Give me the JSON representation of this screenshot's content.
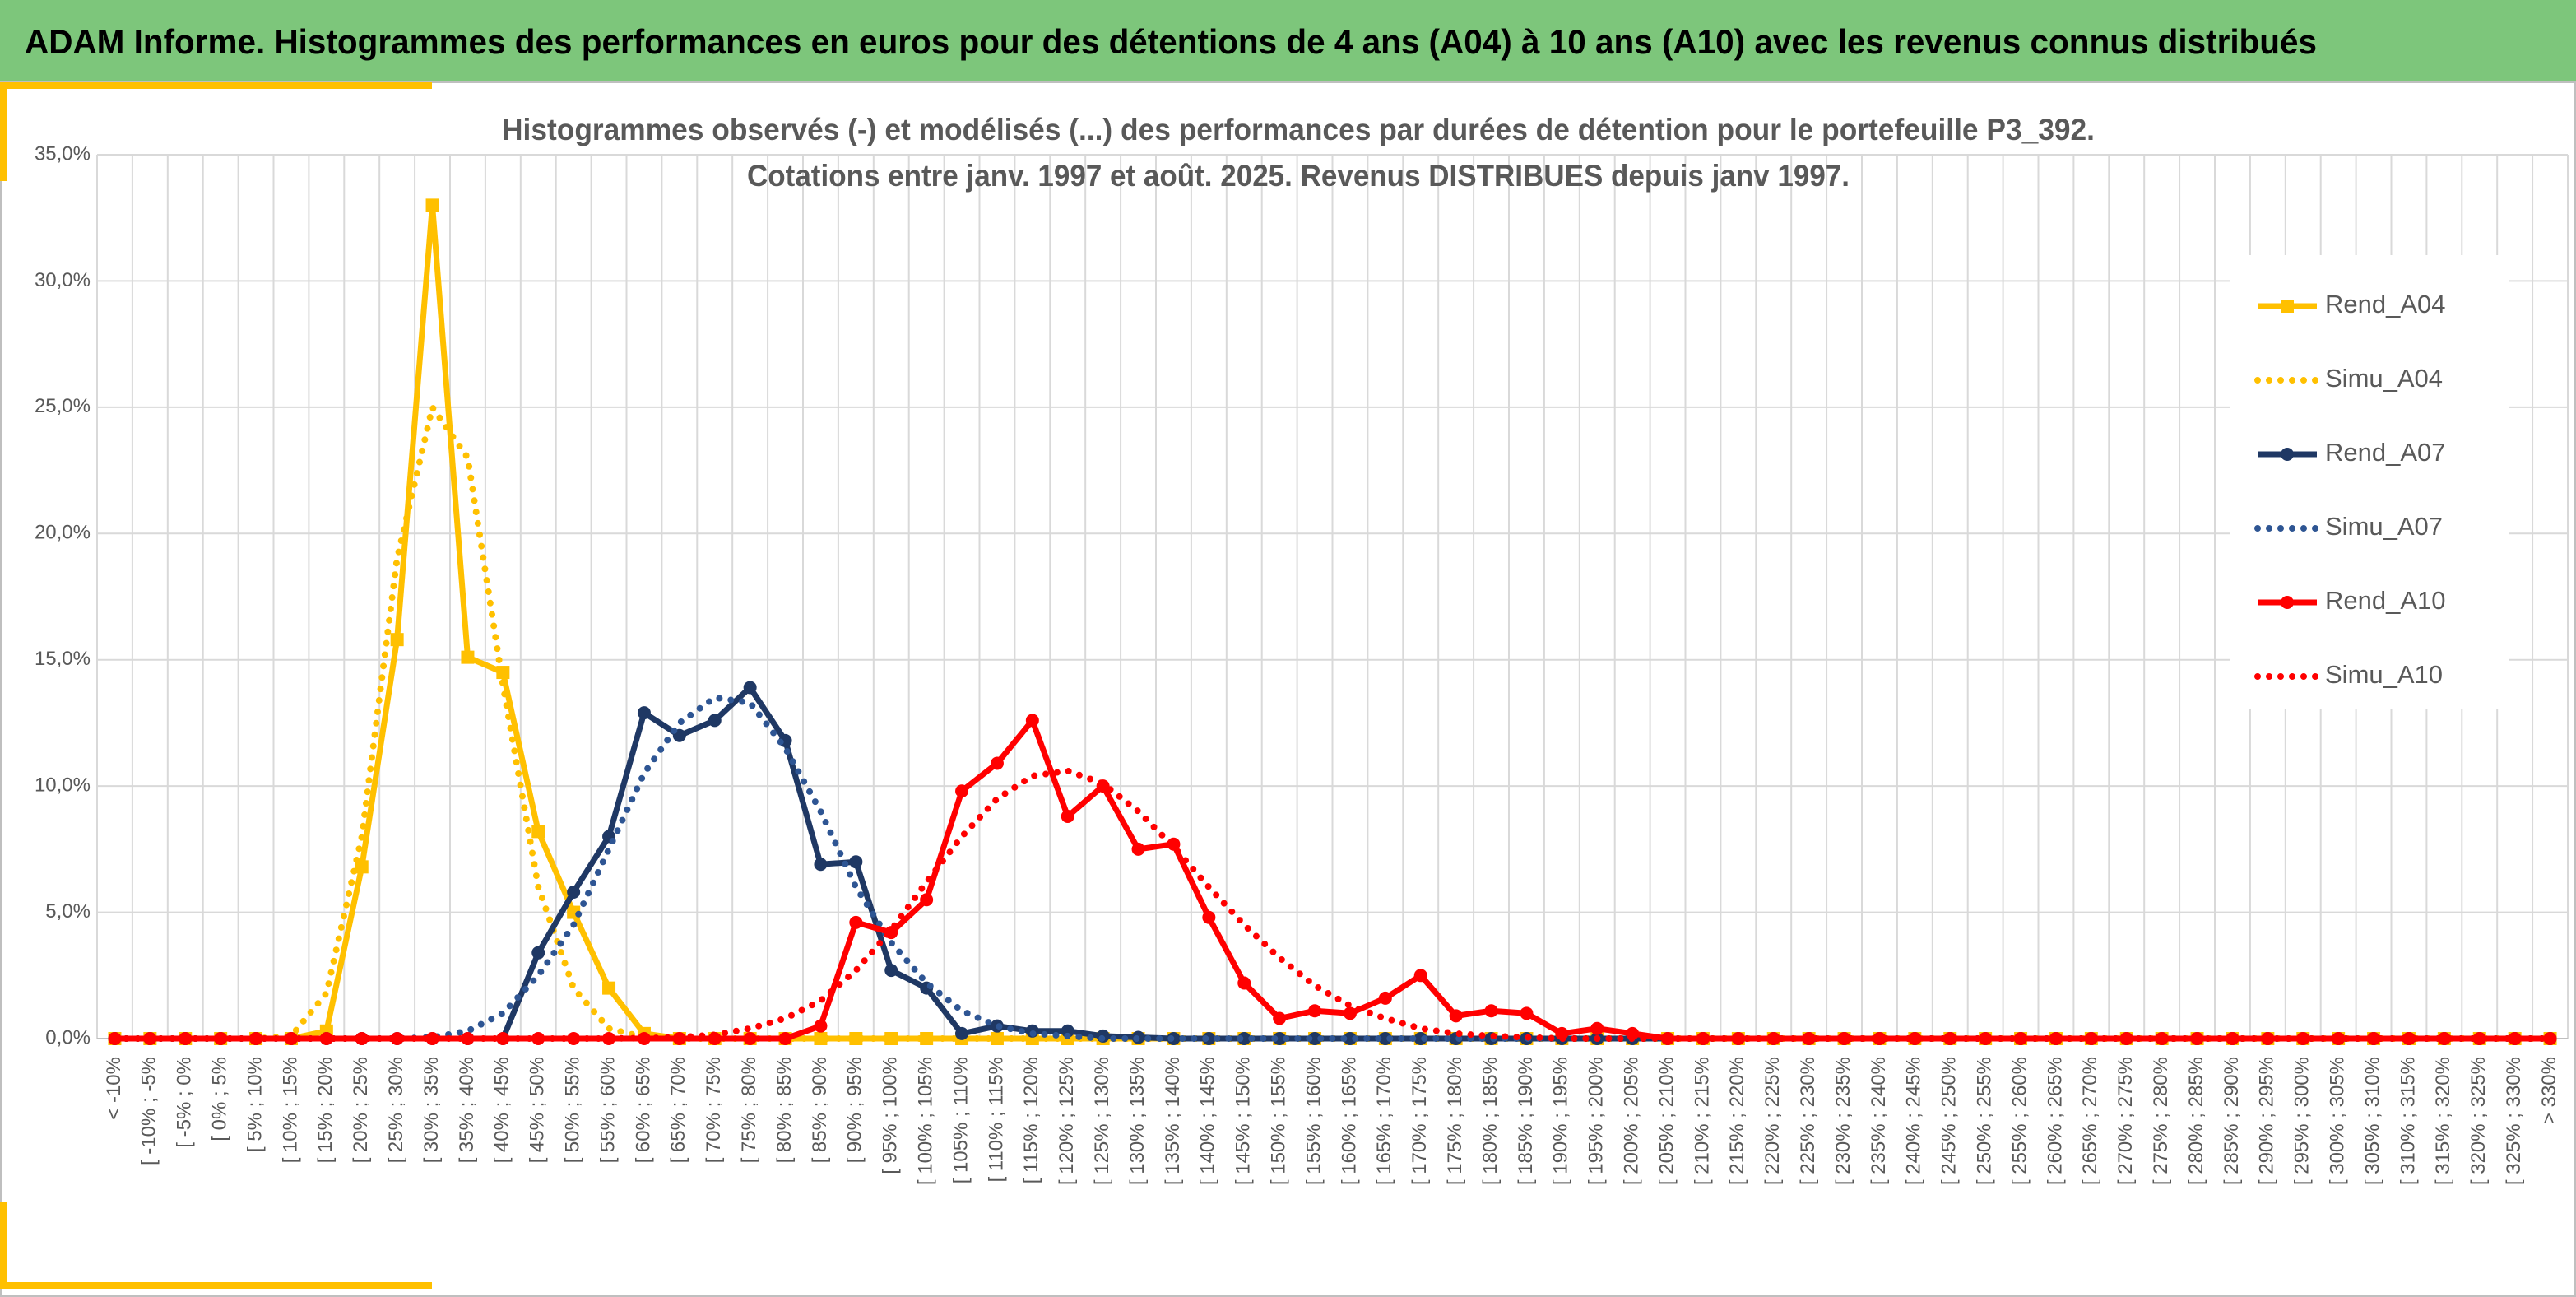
{
  "header": {
    "title": "ADAM Informe. Histogrammes des performances en euros pour des détentions de 4 ans (A04) à 10 ans (A10) avec les revenus connus distribués"
  },
  "chart_data": {
    "type": "line",
    "title": [
      "Histogrammes observés (-) et modélisés (...) des performances par durées de détention pour le portefeuille P3_392.",
      "Cotations entre janv. 1997 et août. 2025. Revenus DISTRIBUES depuis janv 1997."
    ],
    "categories": [
      "< -10%",
      "[ -10% ; -5%",
      "[ -5% ; 0%",
      "[ 0% ; 5%",
      "[ 5% ; 10%",
      "[ 10% ; 15%",
      "[ 15% ; 20%",
      "[ 20% ; 25%",
      "[ 25% ; 30%",
      "[ 30% ; 35%",
      "[ 35% ; 40%",
      "[ 40% ; 45%",
      "[ 45% ; 50%",
      "[ 50% ; 55%",
      "[ 55% ; 60%",
      "[ 60% ; 65%",
      "[ 65% ; 70%",
      "[ 70% ; 75%",
      "[ 75% ; 80%",
      "[ 80% ; 85%",
      "[ 85% ; 90%",
      "[ 90% ; 95%",
      "[ 95% ; 100%",
      "[ 100% ; 105%",
      "[ 105% ; 110%",
      "[ 110% ; 115%",
      "[ 115% ; 120%",
      "[ 120% ; 125%",
      "[ 125% ; 130%",
      "[ 130% ; 135%",
      "[ 135% ; 140%",
      "[ 140% ; 145%",
      "[ 145% ; 150%",
      "[ 150% ; 155%",
      "[ 155% ; 160%",
      "[ 160% ; 165%",
      "[ 165% ; 170%",
      "[ 170% ; 175%",
      "[ 175% ; 180%",
      "[ 180% ; 185%",
      "[ 185% ; 190%",
      "[ 190% ; 195%",
      "[ 195% ; 200%",
      "[ 200% ; 205%",
      "[ 205% ; 210%",
      "[ 210% ; 215%",
      "[ 215% ; 220%",
      "[ 220% ; 225%",
      "[ 225% ; 230%",
      "[ 230% ; 235%",
      "[ 235% ; 240%",
      "[ 240% ; 245%",
      "[ 245% ; 250%",
      "[ 250% ; 255%",
      "[ 255% ; 260%",
      "[ 260% ; 265%",
      "[ 265% ; 270%",
      "[ 270% ; 275%",
      "[ 275% ; 280%",
      "[ 280% ; 285%",
      "[ 285% ; 290%",
      "[ 290% ; 295%",
      "[ 295% ; 300%",
      "[ 300% ; 305%",
      "[ 305% ; 310%",
      "[ 310% ; 315%",
      "[ 315% ; 320%",
      "[ 320% ; 325%",
      "[ 325% ; 330%",
      "> 330%"
    ],
    "series": [
      {
        "name": "Rend_A04",
        "color": "#ffc000",
        "style": "solid",
        "marker": "square",
        "values": [
          0,
          0,
          0,
          0,
          0,
          0,
          0.3,
          6.8,
          15.8,
          33.0,
          15.1,
          14.5,
          8.2,
          5.0,
          2.0,
          0.2,
          0,
          0,
          0,
          0,
          0,
          0,
          0,
          0,
          0,
          0,
          0,
          0,
          0,
          0,
          0,
          0,
          0,
          0,
          0,
          0,
          0,
          0,
          0,
          0,
          0,
          0,
          0,
          0,
          0,
          0,
          0,
          0,
          0,
          0,
          0,
          0,
          0,
          0,
          0,
          0,
          0,
          0,
          0,
          0,
          0,
          0,
          0,
          0,
          0,
          0,
          0,
          0,
          0,
          0
        ]
      },
      {
        "name": "Simu_A04",
        "color": "#ffc000",
        "style": "dotted",
        "marker": null,
        "values": [
          0,
          0,
          0,
          0,
          0,
          0.1,
          1.8,
          8.0,
          19.0,
          25.0,
          23.0,
          14.0,
          6.0,
          2.0,
          0.4,
          0.05,
          0,
          0,
          0,
          0,
          0,
          0,
          0,
          0,
          0,
          0,
          0,
          0,
          0,
          0,
          0,
          0,
          0,
          0,
          0,
          0,
          0,
          0,
          0,
          0,
          0,
          0,
          0,
          0,
          0,
          0,
          0,
          0,
          0,
          0,
          0,
          0,
          0,
          0,
          0,
          0,
          0,
          0,
          0,
          0,
          0,
          0,
          0,
          0,
          0,
          0,
          0,
          0,
          0,
          0
        ]
      },
      {
        "name": "Rend_A07",
        "color": "#1f3864",
        "style": "solid",
        "marker": "circle",
        "values": [
          0,
          0,
          0,
          0,
          0,
          0,
          0,
          0,
          0,
          0,
          0,
          0,
          3.4,
          5.8,
          8.0,
          12.9,
          12.0,
          12.6,
          13.9,
          11.8,
          6.9,
          7.0,
          2.7,
          2.0,
          0.2,
          0.5,
          0.3,
          0.3,
          0.1,
          0.05,
          0,
          0,
          0,
          0,
          0,
          0,
          0,
          0,
          0,
          0,
          0,
          0,
          0,
          0,
          0,
          0,
          0,
          0,
          0,
          0,
          0,
          0,
          0,
          0,
          0,
          0,
          0,
          0,
          0,
          0,
          0,
          0,
          0,
          0,
          0,
          0,
          0,
          0,
          0,
          0
        ]
      },
      {
        "name": "Simu_A07",
        "color": "#2e5593",
        "style": "dotted",
        "marker": null,
        "values": [
          0,
          0,
          0,
          0,
          0,
          0,
          0,
          0,
          0,
          0.05,
          0.3,
          1.0,
          2.5,
          4.5,
          7.5,
          10.5,
          12.5,
          13.5,
          13.3,
          11.5,
          9.0,
          6.0,
          3.8,
          2.2,
          1.1,
          0.5,
          0.2,
          0.1,
          0,
          0,
          0,
          0,
          0,
          0,
          0,
          0,
          0,
          0,
          0,
          0,
          0,
          0,
          0,
          0,
          0,
          0,
          0,
          0,
          0,
          0,
          0,
          0,
          0,
          0,
          0,
          0,
          0,
          0,
          0,
          0,
          0,
          0,
          0,
          0,
          0,
          0,
          0,
          0,
          0,
          0
        ]
      },
      {
        "name": "Rend_A10",
        "color": "#ff0000",
        "style": "solid",
        "marker": "circle",
        "values": [
          0,
          0,
          0,
          0,
          0,
          0,
          0,
          0,
          0,
          0,
          0,
          0,
          0,
          0,
          0,
          0,
          0,
          0,
          0,
          0,
          0.5,
          4.6,
          4.2,
          5.5,
          9.8,
          10.9,
          12.6,
          8.8,
          10.0,
          7.5,
          7.7,
          4.8,
          2.2,
          0.8,
          1.1,
          1.0,
          1.6,
          2.5,
          0.9,
          1.1,
          1.0,
          0.2,
          0.4,
          0.2,
          0,
          0,
          0,
          0,
          0,
          0,
          0,
          0,
          0,
          0,
          0,
          0,
          0,
          0,
          0,
          0,
          0,
          0,
          0,
          0,
          0,
          0,
          0,
          0,
          0,
          0
        ]
      },
      {
        "name": "Simu_A10",
        "color": "#ff0000",
        "style": "dotted",
        "marker": null,
        "values": [
          0,
          0,
          0,
          0,
          0,
          0,
          0,
          0,
          0,
          0,
          0,
          0,
          0,
          0,
          0,
          0.02,
          0.05,
          0.15,
          0.4,
          0.8,
          1.5,
          2.7,
          4.3,
          6.2,
          8.0,
          9.5,
          10.4,
          10.6,
          10.1,
          9.0,
          7.6,
          6.0,
          4.5,
          3.2,
          2.1,
          1.3,
          0.8,
          0.4,
          0.2,
          0.1,
          0.05,
          0,
          0,
          0,
          0,
          0,
          0,
          0,
          0,
          0,
          0,
          0,
          0,
          0,
          0,
          0,
          0,
          0,
          0,
          0,
          0,
          0,
          0,
          0,
          0,
          0,
          0,
          0,
          0,
          0
        ]
      }
    ],
    "ylim": [
      0,
      35
    ],
    "yticks": [
      {
        "value": 0,
        "label": "0,0%"
      },
      {
        "value": 5,
        "label": "5,0%"
      },
      {
        "value": 10,
        "label": "10,0%"
      },
      {
        "value": 15,
        "label": "15,0%"
      },
      {
        "value": 20,
        "label": "20,0%"
      },
      {
        "value": 25,
        "label": "25,0%"
      },
      {
        "value": 30,
        "label": "30,0%"
      },
      {
        "value": 35,
        "label": "35,0%"
      }
    ],
    "grid": true,
    "legend": "right"
  }
}
